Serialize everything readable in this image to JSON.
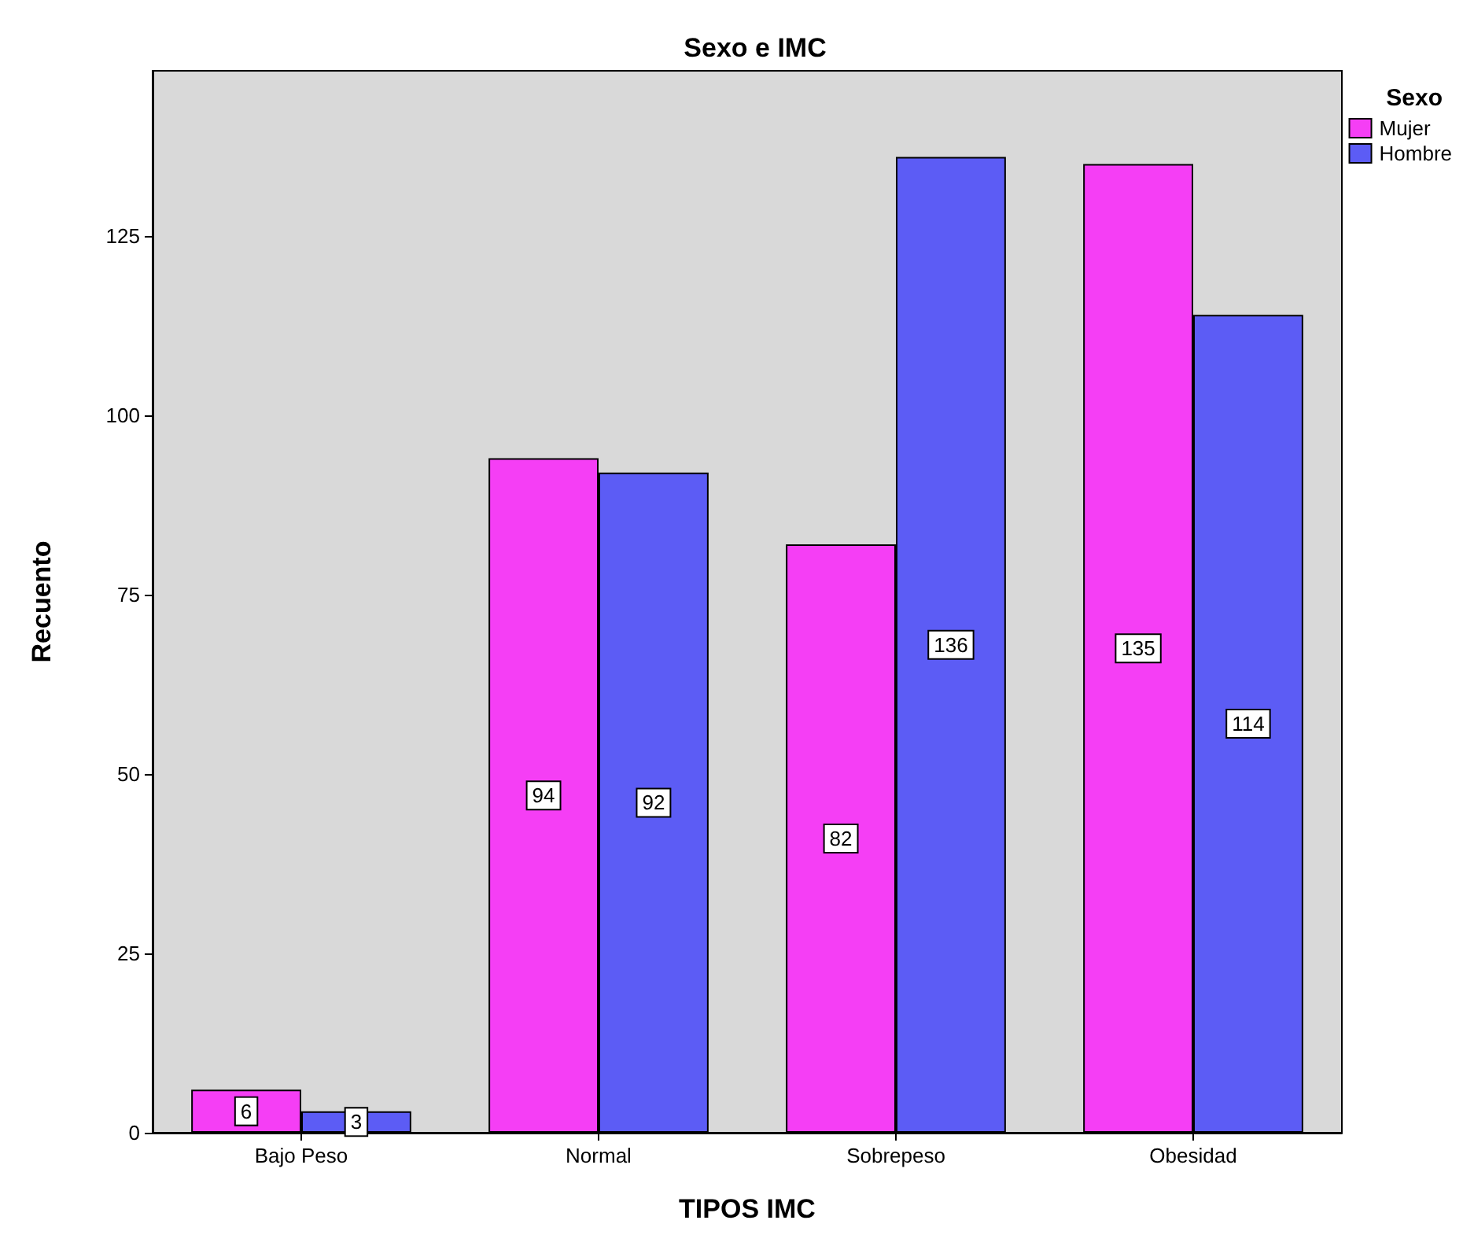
{
  "chart_data": {
    "type": "bar",
    "title": "Sexo e IMC",
    "xlabel": "TIPOS IMC",
    "ylabel": "Recuento",
    "legend_title": "Sexo",
    "categories": [
      "Bajo Peso",
      "Normal",
      "Sobrepeso",
      "Obesidad"
    ],
    "series": [
      {
        "name": "Mujer",
        "color": "#f53ef5",
        "values": [
          6,
          94,
          82,
          135
        ]
      },
      {
        "name": "Hombre",
        "color": "#5c5cf5",
        "values": [
          3,
          92,
          136,
          114
        ]
      }
    ],
    "ylim": [
      0,
      148
    ],
    "yticks": [
      0,
      25,
      50,
      75,
      100,
      125
    ],
    "grid": false,
    "legend": "top right",
    "data_labels": true
  }
}
